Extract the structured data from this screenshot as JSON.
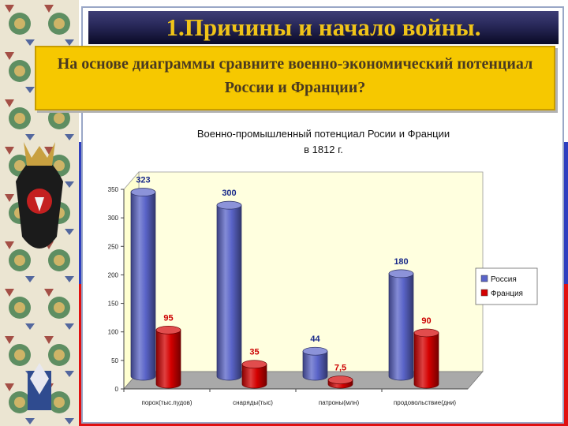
{
  "slide": {
    "title": "1.Причины и начало войны.",
    "question": "На основе диаграммы сравните военно-экономический потенциал России и Франции?"
  },
  "colors": {
    "russia": "#5a64c8",
    "france": "#d40000",
    "title_bar": "#1a1a48",
    "title_text": "#f0c418",
    "question_bg": "#f6c800",
    "flag_blue": "#2f3fbf",
    "flag_red": "#e01010"
  },
  "decor": {
    "left_strip": "imperial-eagle-ornament"
  },
  "chart_data": {
    "type": "bar",
    "style": "3d-cylinder",
    "title": "Военно-промышленный потенциал Росии и Франции",
    "subtitle": "в 1812 г.",
    "categories": [
      "порох(тыс.пудов)",
      "снаряды(тыс)",
      "патроны(млн)",
      "продовольствие(дни)"
    ],
    "series": [
      {
        "name": "Россия",
        "values": [
          323,
          300,
          44,
          180
        ],
        "labels": [
          "323",
          "300",
          "44",
          "180"
        ]
      },
      {
        "name": "Франция",
        "values": [
          95,
          35,
          7.5,
          90
        ],
        "labels": [
          "95",
          "35",
          "7,5",
          "90"
        ]
      }
    ],
    "ylim": [
      0,
      350
    ],
    "yticks": [
      "0",
      "50",
      "100",
      "150",
      "200",
      "250",
      "300",
      "350"
    ],
    "grid": false,
    "legend_position": "right"
  }
}
